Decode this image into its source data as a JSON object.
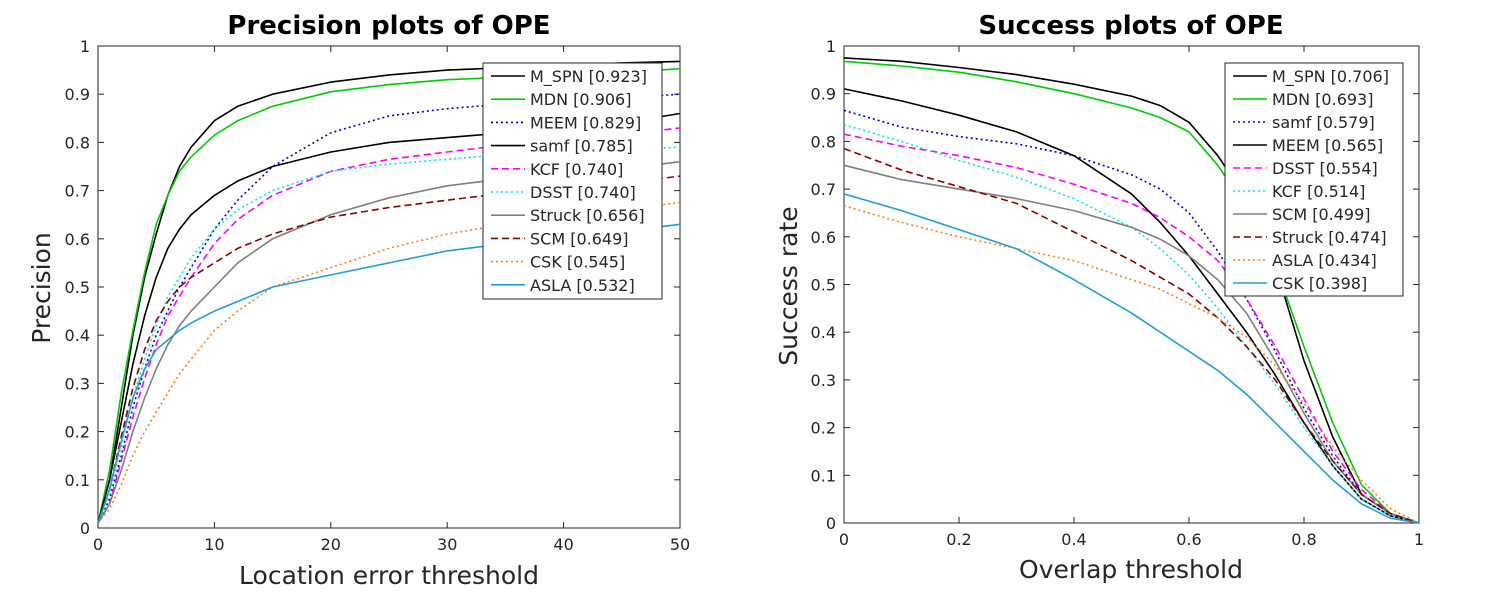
{
  "chart_data": [
    {
      "type": "line",
      "title": "Precision plots of OPE",
      "xlabel": "Location error threshold",
      "ylabel": "Precision",
      "xlim": [
        0,
        50
      ],
      "ylim": [
        0,
        1
      ],
      "xticks": [
        "0",
        "10",
        "20",
        "30",
        "40",
        "50"
      ],
      "yticks": [
        "0",
        "0.1",
        "0.2",
        "0.3",
        "0.4",
        "0.5",
        "0.6",
        "0.7",
        "0.8",
        "0.9",
        "1"
      ],
      "legend_position": "top-right",
      "grid": false,
      "series": [
        {
          "name": "M_SPN [0.923]",
          "color": "#000000",
          "dash": "solid",
          "x": [
            0,
            1,
            2,
            3,
            4,
            5,
            6,
            7,
            8,
            10,
            12,
            15,
            20,
            25,
            30,
            35,
            40,
            45,
            50
          ],
          "y": [
            0.01,
            0.1,
            0.25,
            0.4,
            0.52,
            0.61,
            0.69,
            0.75,
            0.79,
            0.845,
            0.875,
            0.9,
            0.925,
            0.94,
            0.95,
            0.955,
            0.96,
            0.965,
            0.968
          ]
        },
        {
          "name": "MDN [0.906]",
          "color": "#00cc00",
          "dash": "solid",
          "x": [
            0,
            1,
            2,
            3,
            4,
            5,
            6,
            7,
            8,
            10,
            12,
            15,
            20,
            25,
            30,
            35,
            40,
            45,
            50
          ],
          "y": [
            0.01,
            0.12,
            0.28,
            0.41,
            0.53,
            0.63,
            0.69,
            0.74,
            0.77,
            0.815,
            0.845,
            0.875,
            0.905,
            0.92,
            0.93,
            0.935,
            0.94,
            0.945,
            0.953
          ]
        },
        {
          "name": "MEEM [0.829]",
          "color": "#0000cc",
          "dash": "dot",
          "x": [
            0,
            1,
            2,
            3,
            4,
            5,
            6,
            7,
            8,
            10,
            12,
            15,
            20,
            25,
            30,
            35,
            40,
            45,
            50
          ],
          "y": [
            0.01,
            0.06,
            0.15,
            0.25,
            0.33,
            0.4,
            0.45,
            0.5,
            0.54,
            0.62,
            0.68,
            0.75,
            0.82,
            0.855,
            0.87,
            0.88,
            0.885,
            0.892,
            0.9
          ]
        },
        {
          "name": "samf [0.785]",
          "color": "#000000",
          "dash": "solid",
          "x": [
            0,
            1,
            2,
            3,
            4,
            5,
            6,
            7,
            8,
            10,
            12,
            15,
            20,
            25,
            30,
            35,
            40,
            45,
            50
          ],
          "y": [
            0.01,
            0.1,
            0.22,
            0.34,
            0.44,
            0.52,
            0.58,
            0.62,
            0.65,
            0.69,
            0.72,
            0.75,
            0.78,
            0.8,
            0.81,
            0.82,
            0.83,
            0.84,
            0.86
          ]
        },
        {
          "name": "KCF [0.740]",
          "color": "#ff00ff",
          "dash": "dash",
          "x": [
            0,
            1,
            2,
            3,
            4,
            5,
            6,
            7,
            8,
            10,
            12,
            15,
            20,
            25,
            30,
            35,
            40,
            45,
            50
          ],
          "y": [
            0.01,
            0.05,
            0.14,
            0.23,
            0.31,
            0.38,
            0.44,
            0.48,
            0.52,
            0.59,
            0.64,
            0.69,
            0.74,
            0.765,
            0.78,
            0.795,
            0.805,
            0.815,
            0.83
          ]
        },
        {
          "name": "DSST [0.740]",
          "color": "#00e5ee",
          "dash": "dot",
          "x": [
            0,
            1,
            2,
            3,
            4,
            5,
            6,
            7,
            8,
            10,
            12,
            15,
            20,
            25,
            30,
            35,
            40,
            45,
            50
          ],
          "y": [
            0.01,
            0.07,
            0.17,
            0.27,
            0.35,
            0.42,
            0.48,
            0.52,
            0.56,
            0.62,
            0.66,
            0.7,
            0.74,
            0.755,
            0.765,
            0.775,
            0.78,
            0.785,
            0.79
          ]
        },
        {
          "name": "Struck [0.656]",
          "color": "#808080",
          "dash": "solid",
          "x": [
            0,
            1,
            2,
            3,
            4,
            5,
            6,
            7,
            8,
            10,
            12,
            15,
            20,
            25,
            30,
            35,
            40,
            45,
            50
          ],
          "y": [
            0.01,
            0.05,
            0.12,
            0.2,
            0.27,
            0.33,
            0.38,
            0.42,
            0.45,
            0.5,
            0.55,
            0.6,
            0.65,
            0.685,
            0.71,
            0.725,
            0.735,
            0.745,
            0.76
          ]
        },
        {
          "name": "SCM [0.649]",
          "color": "#8b0000",
          "dash": "dash",
          "x": [
            0,
            1,
            2,
            3,
            4,
            5,
            6,
            7,
            8,
            10,
            12,
            15,
            20,
            25,
            30,
            35,
            40,
            45,
            50
          ],
          "y": [
            0.01,
            0.08,
            0.19,
            0.29,
            0.37,
            0.43,
            0.47,
            0.5,
            0.52,
            0.55,
            0.58,
            0.61,
            0.645,
            0.665,
            0.68,
            0.695,
            0.705,
            0.715,
            0.73
          ]
        },
        {
          "name": "CSK [0.545]",
          "color": "#ff7f0e",
          "dash": "dot",
          "x": [
            0,
            1,
            2,
            3,
            4,
            5,
            6,
            7,
            8,
            10,
            12,
            15,
            20,
            25,
            30,
            35,
            40,
            45,
            50
          ],
          "y": [
            0.01,
            0.04,
            0.09,
            0.15,
            0.2,
            0.24,
            0.28,
            0.32,
            0.35,
            0.41,
            0.45,
            0.5,
            0.54,
            0.58,
            0.61,
            0.63,
            0.65,
            0.66,
            0.675
          ]
        },
        {
          "name": "ASLA [0.532]",
          "color": "#1f9fd6",
          "dash": "solid",
          "x": [
            0,
            1,
            2,
            3,
            4,
            5,
            6,
            7,
            8,
            10,
            12,
            15,
            20,
            25,
            30,
            35,
            40,
            45,
            50
          ],
          "y": [
            0.01,
            0.08,
            0.18,
            0.27,
            0.33,
            0.37,
            0.39,
            0.41,
            0.425,
            0.45,
            0.47,
            0.5,
            0.525,
            0.55,
            0.575,
            0.59,
            0.605,
            0.615,
            0.63
          ]
        }
      ]
    },
    {
      "type": "line",
      "title": "Success plots of OPE",
      "xlabel": "Overlap threshold",
      "ylabel": "Success rate",
      "xlim": [
        0,
        1
      ],
      "ylim": [
        0,
        1
      ],
      "xticks": [
        "0",
        "0.2",
        "0.4",
        "0.6",
        "0.8",
        "1"
      ],
      "yticks": [
        "0",
        "0.1",
        "0.2",
        "0.3",
        "0.4",
        "0.5",
        "0.6",
        "0.7",
        "0.8",
        "0.9",
        "1"
      ],
      "legend_position": "top-right",
      "grid": false,
      "series": [
        {
          "name": "M_SPN [0.706]",
          "color": "#000000",
          "dash": "solid",
          "x": [
            0,
            0.1,
            0.2,
            0.3,
            0.4,
            0.5,
            0.55,
            0.6,
            0.65,
            0.7,
            0.75,
            0.8,
            0.85,
            0.9,
            0.95,
            1
          ],
          "y": [
            0.975,
            0.968,
            0.955,
            0.94,
            0.92,
            0.895,
            0.875,
            0.84,
            0.77,
            0.68,
            0.54,
            0.34,
            0.18,
            0.06,
            0.02,
            0.0
          ]
        },
        {
          "name": "MDN [0.693]",
          "color": "#00cc00",
          "dash": "solid",
          "x": [
            0,
            0.1,
            0.2,
            0.3,
            0.4,
            0.5,
            0.55,
            0.6,
            0.65,
            0.7,
            0.75,
            0.8,
            0.85,
            0.9,
            0.95,
            1
          ],
          "y": [
            0.968,
            0.958,
            0.945,
            0.925,
            0.9,
            0.87,
            0.85,
            0.82,
            0.75,
            0.66,
            0.54,
            0.37,
            0.21,
            0.08,
            0.02,
            0.0
          ]
        },
        {
          "name": "samf [0.579]",
          "color": "#0000cc",
          "dash": "dot",
          "x": [
            0,
            0.1,
            0.2,
            0.3,
            0.4,
            0.5,
            0.55,
            0.6,
            0.65,
            0.7,
            0.75,
            0.8,
            0.85,
            0.9,
            0.95,
            1
          ],
          "y": [
            0.865,
            0.83,
            0.81,
            0.795,
            0.77,
            0.73,
            0.7,
            0.65,
            0.57,
            0.47,
            0.36,
            0.24,
            0.14,
            0.06,
            0.02,
            0.0
          ]
        },
        {
          "name": "MEEM [0.565]",
          "color": "#000000",
          "dash": "solid",
          "x": [
            0,
            0.1,
            0.2,
            0.3,
            0.4,
            0.5,
            0.55,
            0.6,
            0.65,
            0.7,
            0.75,
            0.8,
            0.85,
            0.9,
            0.95,
            1
          ],
          "y": [
            0.91,
            0.885,
            0.855,
            0.82,
            0.77,
            0.69,
            0.63,
            0.56,
            0.48,
            0.4,
            0.31,
            0.21,
            0.12,
            0.05,
            0.015,
            0.0
          ]
        },
        {
          "name": "DSST [0.554]",
          "color": "#ff00ff",
          "dash": "dash",
          "x": [
            0,
            0.1,
            0.2,
            0.3,
            0.4,
            0.5,
            0.55,
            0.6,
            0.65,
            0.7,
            0.75,
            0.8,
            0.85,
            0.9,
            0.95,
            1
          ],
          "y": [
            0.815,
            0.79,
            0.77,
            0.745,
            0.71,
            0.67,
            0.64,
            0.6,
            0.55,
            0.47,
            0.37,
            0.26,
            0.15,
            0.07,
            0.02,
            0.0
          ]
        },
        {
          "name": "KCF [0.514]",
          "color": "#00e5ee",
          "dash": "dot",
          "x": [
            0,
            0.1,
            0.2,
            0.3,
            0.4,
            0.5,
            0.55,
            0.6,
            0.65,
            0.7,
            0.75,
            0.8,
            0.85,
            0.9,
            0.95,
            1
          ],
          "y": [
            0.835,
            0.8,
            0.76,
            0.725,
            0.68,
            0.62,
            0.575,
            0.52,
            0.45,
            0.37,
            0.29,
            0.2,
            0.12,
            0.05,
            0.015,
            0.0
          ]
        },
        {
          "name": "SCM [0.499]",
          "color": "#808080",
          "dash": "solid",
          "x": [
            0,
            0.1,
            0.2,
            0.3,
            0.4,
            0.5,
            0.55,
            0.6,
            0.65,
            0.7,
            0.75,
            0.8,
            0.85,
            0.9,
            0.95,
            1
          ],
          "y": [
            0.75,
            0.72,
            0.7,
            0.68,
            0.655,
            0.62,
            0.595,
            0.56,
            0.51,
            0.44,
            0.34,
            0.23,
            0.13,
            0.06,
            0.02,
            0.0
          ]
        },
        {
          "name": "Struck [0.474]",
          "color": "#8b0000",
          "dash": "dash",
          "x": [
            0,
            0.1,
            0.2,
            0.3,
            0.4,
            0.5,
            0.55,
            0.6,
            0.65,
            0.7,
            0.75,
            0.8,
            0.85,
            0.9,
            0.95,
            1
          ],
          "y": [
            0.785,
            0.74,
            0.705,
            0.67,
            0.61,
            0.55,
            0.515,
            0.48,
            0.43,
            0.37,
            0.3,
            0.21,
            0.13,
            0.06,
            0.02,
            0.0
          ]
        },
        {
          "name": "ASLA [0.434]",
          "color": "#ff7f0e",
          "dash": "dot",
          "x": [
            0,
            0.1,
            0.2,
            0.3,
            0.4,
            0.5,
            0.55,
            0.6,
            0.65,
            0.7,
            0.75,
            0.8,
            0.85,
            0.9,
            0.95,
            1
          ],
          "y": [
            0.665,
            0.63,
            0.6,
            0.575,
            0.55,
            0.51,
            0.49,
            0.46,
            0.43,
            0.39,
            0.33,
            0.25,
            0.16,
            0.09,
            0.03,
            0.0
          ]
        },
        {
          "name": "CSK [0.398]",
          "color": "#1f9fd6",
          "dash": "solid",
          "x": [
            0,
            0.1,
            0.2,
            0.3,
            0.4,
            0.5,
            0.55,
            0.6,
            0.65,
            0.7,
            0.75,
            0.8,
            0.85,
            0.9,
            0.95,
            1
          ],
          "y": [
            0.69,
            0.655,
            0.615,
            0.575,
            0.51,
            0.44,
            0.4,
            0.36,
            0.32,
            0.27,
            0.21,
            0.15,
            0.09,
            0.04,
            0.01,
            0.0
          ]
        }
      ]
    }
  ]
}
